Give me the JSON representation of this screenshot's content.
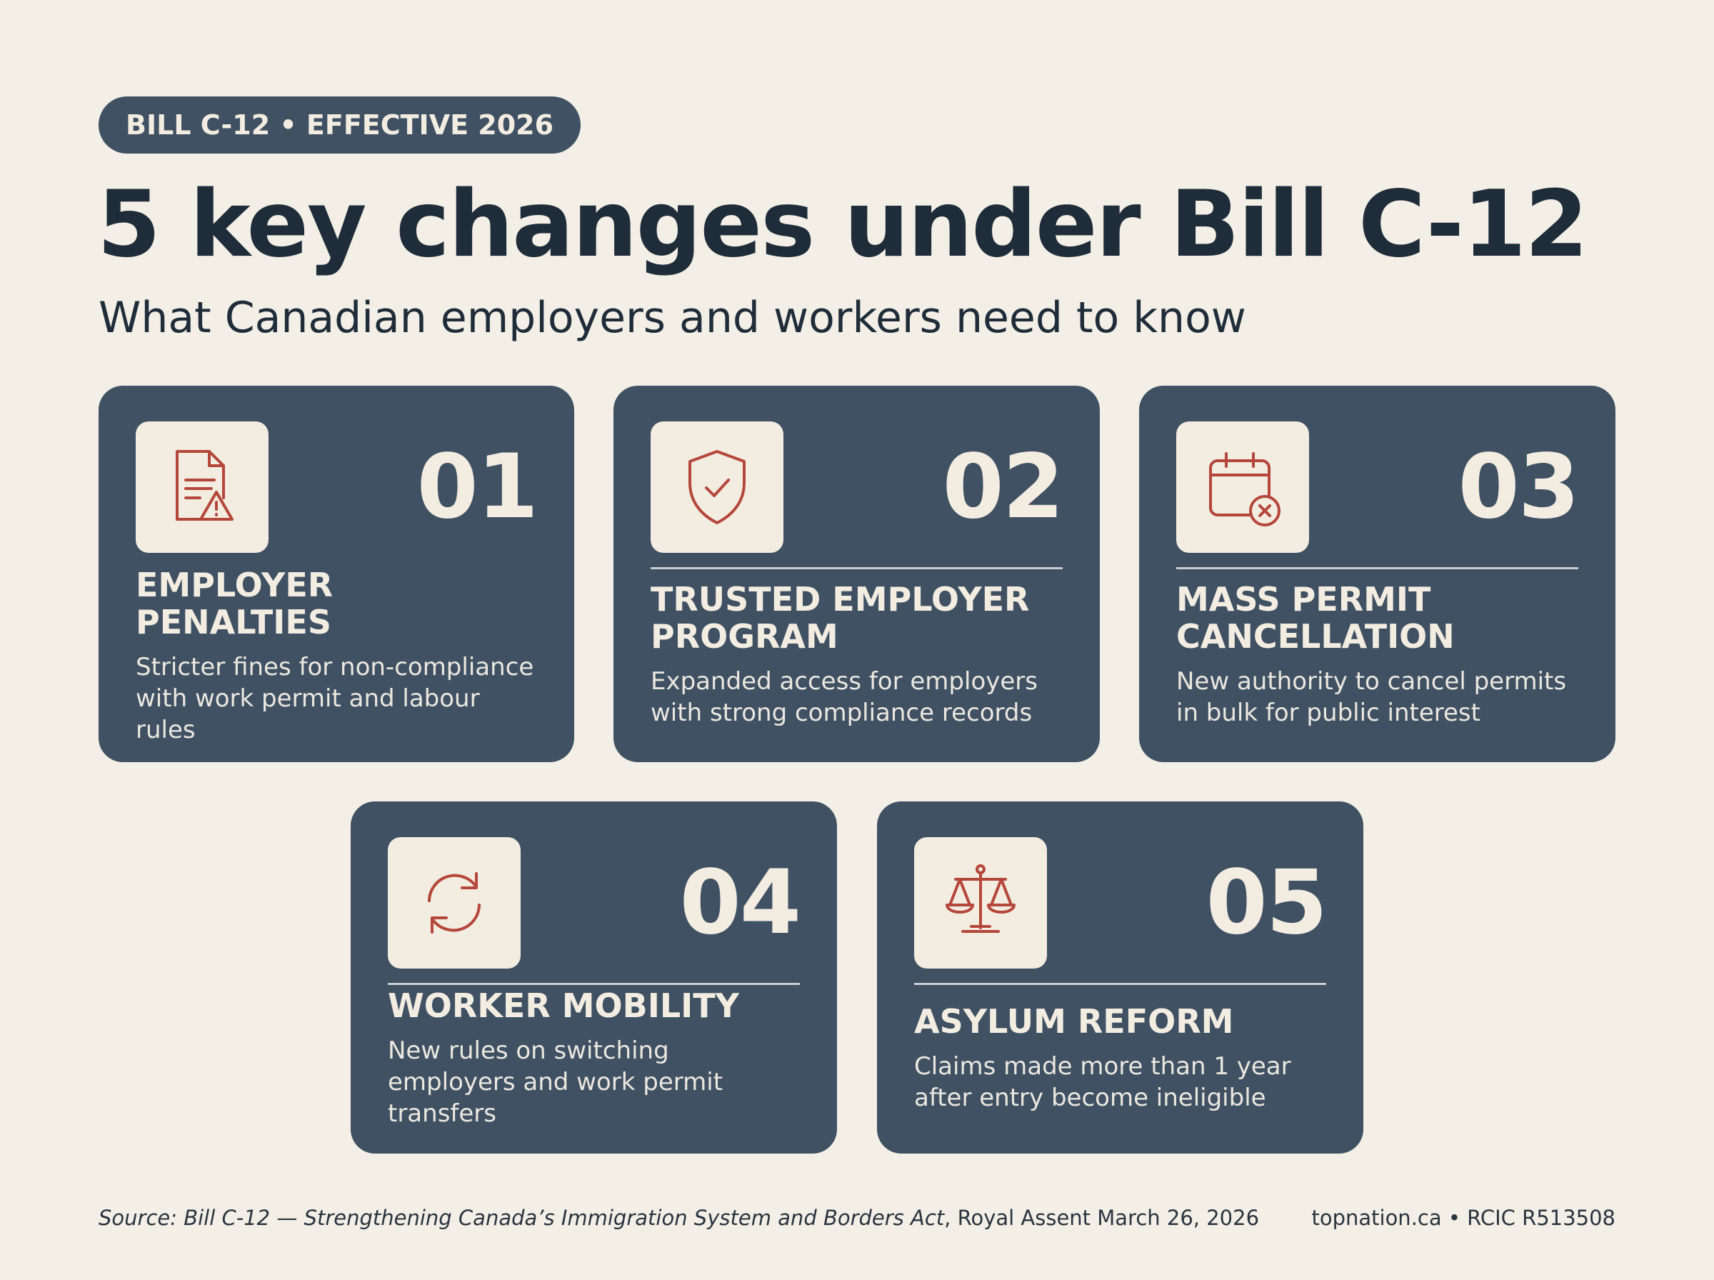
{
  "badge": "BILL C-12 • EFFECTIVE 2026",
  "title": "5 key changes under Bill C-12",
  "subtitle": "What Canadian employers and workers need to know",
  "cards": [
    {
      "number": "01",
      "heading": "EMPLOYER PENALTIES",
      "description": "Stricter fines for non-compliance with work permit and labour rules"
    },
    {
      "number": "02",
      "heading": "TRUSTED EMPLOYER PROGRAM",
      "description": "Expanded access for employers with strong compliance records"
    },
    {
      "number": "03",
      "heading": "MASS PERMIT CANCELLATION",
      "description": "New authority to cancel permits in bulk for public interest"
    },
    {
      "number": "04",
      "heading": "WORKER MOBILITY",
      "description": "New rules on switching employers and work permit transfers"
    },
    {
      "number": "05",
      "heading": "ASYLUM REFORM",
      "description": "Claims made more than 1 year after entry become ineligible"
    }
  ],
  "footer": {
    "source_italic": "Source: Bill C-12 — Strengthening Canada’s Immigration System and Borders Act",
    "source_rest": ", Royal Assent March 26, 2026",
    "credit": "topnation.ca • RCIC R513508"
  }
}
